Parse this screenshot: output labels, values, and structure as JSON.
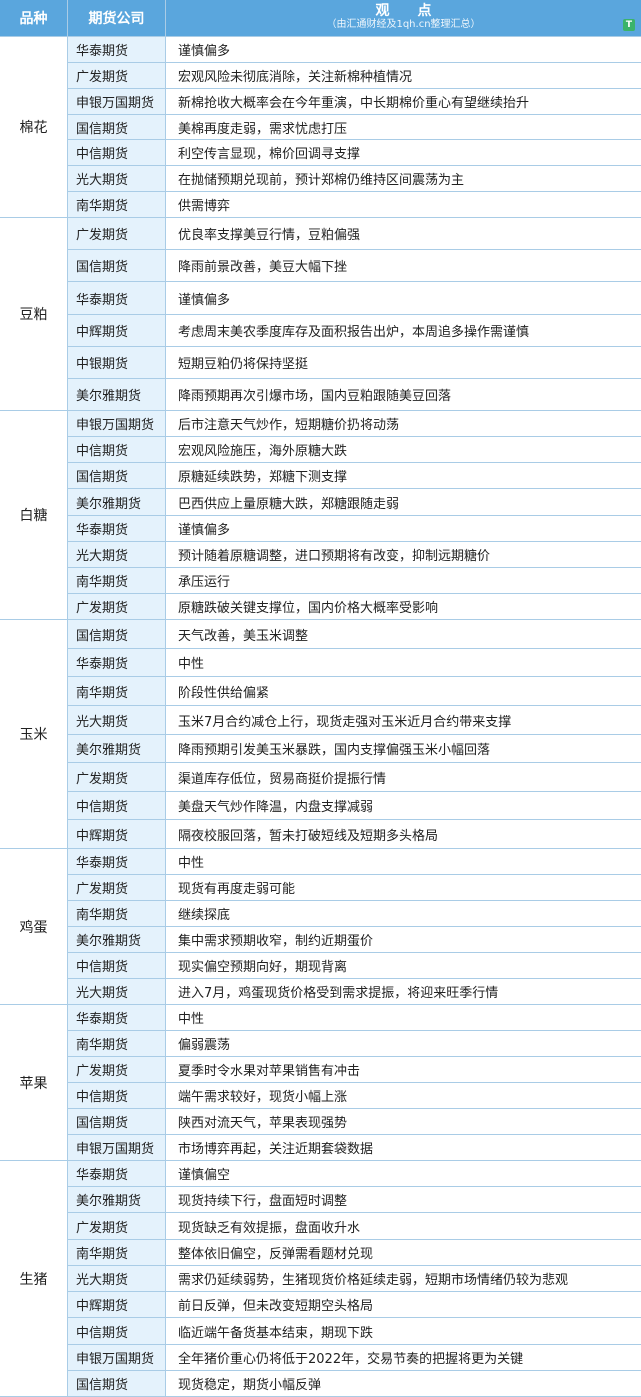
{
  "header": {
    "variety": "品种",
    "company": "期货公司",
    "view": "观　　点",
    "subtitle": "（由汇通财经及1qh.cn整理汇总）"
  },
  "groups": [
    {
      "name": "棉花",
      "rows": [
        [
          "华泰期货",
          "谨慎偏多"
        ],
        [
          "广发期货",
          "宏观风险未彻底消除，关注新棉种植情况"
        ],
        [
          "申银万国期货",
          "新棉抢收大概率会在今年重演，中长期棉价重心有望继续抬升"
        ],
        [
          "国信期货",
          "美棉再度走弱，需求忧虑打压"
        ],
        [
          "中信期货",
          "利空传言显现，棉价回调寻支撑"
        ],
        [
          "光大期货",
          "在抛储预期兑现前，预计郑棉仍维持区间震荡为主"
        ],
        [
          "南华期货",
          "供需博弈"
        ]
      ]
    },
    {
      "name": "豆粕",
      "rows": [
        [
          "广发期货",
          "优良率支撑美豆行情，豆粕偏强"
        ],
        [
          "国信期货",
          "降雨前景改善，美豆大幅下挫"
        ],
        [
          "华泰期货",
          "谨慎偏多"
        ],
        [
          "中辉期货",
          "考虑周末美农季度库存及面积报告出炉，本周追多操作需谨慎"
        ],
        [
          "中银期货",
          "短期豆粕仍将保持坚挺"
        ],
        [
          "美尔雅期货",
          "降雨预期再次引爆市场，国内豆粕跟随美豆回落"
        ]
      ]
    },
    {
      "name": "白糖",
      "rows": [
        [
          "申银万国期货",
          "后市注意天气炒作，短期糖价扔将动荡"
        ],
        [
          "中信期货",
          "宏观风险施压，海外原糖大跌"
        ],
        [
          "国信期货",
          "原糖延续跌势，郑糖下测支撑"
        ],
        [
          "美尔雅期货",
          "巴西供应上量原糖大跌，郑糖跟随走弱"
        ],
        [
          "华泰期货",
          "谨慎偏多"
        ],
        [
          "光大期货",
          "预计随着原糖调整，进口预期将有改变，抑制远期糖价"
        ],
        [
          "南华期货",
          "承压运行"
        ],
        [
          "广发期货",
          "原糖跌破关键支撑位，国内价格大概率受影响"
        ]
      ]
    },
    {
      "name": "玉米",
      "rows": [
        [
          "国信期货",
          "天气改善，美玉米调整"
        ],
        [
          "华泰期货",
          "中性"
        ],
        [
          "南华期货",
          "阶段性供给偏紧"
        ],
        [
          "光大期货",
          "玉米7月合约减仓上行，现货走强对玉米近月合约带来支撑"
        ],
        [
          "美尔雅期货",
          "降雨预期引发美玉米暴跌，国内支撑偏强玉米小幅回落"
        ],
        [
          "广发期货",
          "渠道库存低位，贸易商挺价提振行情"
        ],
        [
          "中信期货",
          "美盘天气炒作降温，内盘支撑减弱"
        ],
        [
          "中辉期货",
          "隔夜校服回落，暂未打破短线及短期多头格局"
        ]
      ]
    },
    {
      "name": "鸡蛋",
      "rows": [
        [
          "华泰期货",
          "中性"
        ],
        [
          "广发期货",
          "现货有再度走弱可能"
        ],
        [
          "南华期货",
          "继续探底"
        ],
        [
          "美尔雅期货",
          "集中需求预期收窄，制约近期蛋价"
        ],
        [
          "中信期货",
          "现实偏空预期向好，期现背离"
        ],
        [
          "光大期货",
          "进入7月，鸡蛋现货价格受到需求提振，将迎来旺季行情"
        ]
      ]
    },
    {
      "name": "苹果",
      "rows": [
        [
          "华泰期货",
          "中性"
        ],
        [
          "南华期货",
          "偏弱震荡"
        ],
        [
          "广发期货",
          "夏季时令水果对苹果销售有冲击"
        ],
        [
          "中信期货",
          "端午需求较好，现货小幅上涨"
        ],
        [
          "国信期货",
          "陕西对流天气，苹果表现强势"
        ],
        [
          "申银万国期货",
          "市场博弈再起，关注近期套袋数据"
        ]
      ]
    },
    {
      "name": "生猪",
      "rows": [
        [
          "华泰期货",
          "谨慎偏空"
        ],
        [
          "美尔雅期货",
          "现货持续下行，盘面短时调整"
        ],
        [
          "广发期货",
          "现货缺乏有效提振，盘面收升水"
        ],
        [
          "南华期货",
          "整体依旧偏空，反弹需看题材兑现"
        ],
        [
          "光大期货",
          "需求仍延续弱势，生猪现货价格延续走弱，短期市场情绪仍较为悲观"
        ],
        [
          "中辉期货",
          "前日反弹，但未改变短期空头格局"
        ],
        [
          "中信期货",
          "临近端午备货基本结束，期现下跌"
        ],
        [
          "申银万国期货",
          "全年猪价重心仍将低于2022年，交易节奏的把握将更为关键"
        ],
        [
          "国信期货",
          "现货稳定，期货小幅反弹"
        ]
      ]
    }
  ]
}
